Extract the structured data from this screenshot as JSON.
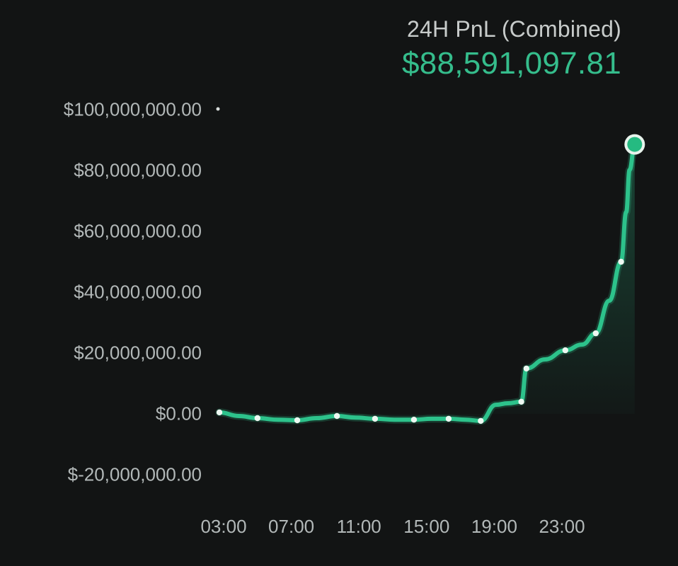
{
  "header": {
    "title": "24H PnL (Combined)",
    "value": "$88,591,097.81"
  },
  "colors": {
    "background": "#121414",
    "title_gray": "#c7cbca",
    "label_gray": "#b2b8b8",
    "value_green": "#35bd8c",
    "line_green": "#2dc28b",
    "dot_white": "#eef8f2",
    "marker_ring": "#e7f3ec",
    "marker_fill": "#25ba81"
  },
  "chart_data": {
    "type": "line",
    "title": "24H PnL (Combined)",
    "current_value": 88591097.81,
    "currency": "USD",
    "grid": false,
    "legend": false,
    "x_axis": {
      "unit": "time-of-day (24H rolling window, hours past 24 = next day)",
      "range_hours": [
        2.75,
        27.3
      ],
      "ticks": [
        {
          "hour": 3,
          "label": "03:00"
        },
        {
          "hour": 7,
          "label": "07:00"
        },
        {
          "hour": 11,
          "label": "11:00"
        },
        {
          "hour": 15,
          "label": "15:00"
        },
        {
          "hour": 19,
          "label": "19:00"
        },
        {
          "hour": 23,
          "label": "23:00"
        }
      ]
    },
    "y_axis": {
      "unit": "USD",
      "range": [
        -20000000,
        100000000
      ],
      "ticks": [
        {
          "value": 100000000,
          "label": "$100,000,000.00"
        },
        {
          "value": 80000000,
          "label": "$80,000,000.00"
        },
        {
          "value": 60000000,
          "label": "$60,000,000.00"
        },
        {
          "value": 40000000,
          "label": "$40,000,000.00"
        },
        {
          "value": 20000000,
          "label": "$20,000,000.00"
        },
        {
          "value": 0,
          "label": "$0.00"
        },
        {
          "value": -20000000,
          "label": "$-20,000,000.00"
        }
      ]
    },
    "points": [
      {
        "x_hour": 2.75,
        "value": 500000,
        "dot": true
      },
      {
        "x_hour": 3.9,
        "value": -700000,
        "dot": false
      },
      {
        "x_hour": 5.0,
        "value": -1400000,
        "dot": true
      },
      {
        "x_hour": 6.2,
        "value": -1900000,
        "dot": false
      },
      {
        "x_hour": 7.35,
        "value": -2100000,
        "dot": true
      },
      {
        "x_hour": 8.5,
        "value": -1400000,
        "dot": false
      },
      {
        "x_hour": 9.7,
        "value": -700000,
        "dot": true
      },
      {
        "x_hour": 10.8,
        "value": -1200000,
        "dot": false
      },
      {
        "x_hour": 11.95,
        "value": -1600000,
        "dot": true
      },
      {
        "x_hour": 13.1,
        "value": -1900000,
        "dot": false
      },
      {
        "x_hour": 14.25,
        "value": -1900000,
        "dot": true
      },
      {
        "x_hour": 15.3,
        "value": -1600000,
        "dot": false
      },
      {
        "x_hour": 16.3,
        "value": -1600000,
        "dot": true
      },
      {
        "x_hour": 17.3,
        "value": -1900000,
        "dot": false
      },
      {
        "x_hour": 18.2,
        "value": -2300000,
        "dot": true
      },
      {
        "x_hour": 19.1,
        "value": 3000000,
        "dot": false
      },
      {
        "x_hour": 19.8,
        "value": 3500000,
        "dot": false
      },
      {
        "x_hour": 20.6,
        "value": 4000000,
        "dot": true
      },
      {
        "x_hour": 20.9,
        "value": 14900000,
        "dot": true
      },
      {
        "x_hour": 22.0,
        "value": 17900000,
        "dot": false
      },
      {
        "x_hour": 23.2,
        "value": 20900000,
        "dot": true
      },
      {
        "x_hour": 24.2,
        "value": 22800000,
        "dot": false
      },
      {
        "x_hour": 25.0,
        "value": 26500000,
        "dot": true
      },
      {
        "x_hour": 25.8,
        "value": 37200000,
        "dot": false
      },
      {
        "x_hour": 26.5,
        "value": 50000000,
        "dot": true
      },
      {
        "x_hour": 26.8,
        "value": 66300000,
        "dot": false
      },
      {
        "x_hour": 27.0,
        "value": 80200000,
        "dot": false
      },
      {
        "x_hour": 27.3,
        "value": 88591097.81,
        "dot": false,
        "end_marker": true
      }
    ]
  }
}
